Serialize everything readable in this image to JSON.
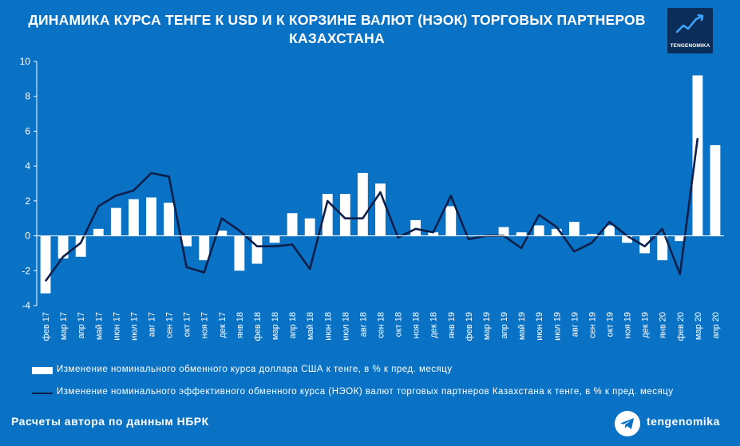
{
  "title": "ДИНАМИКА КУРСА ТЕНГЕ К USD И К КОРЗИНЕ ВАЛЮТ (НЭОК) ТОРГОВЫХ ПАРТНЕРОВ КАЗАХСТАНА",
  "logo": {
    "text": "TENGENOMIKA",
    "icon": "trend-chart-icon"
  },
  "footer": {
    "source": "Расчеты автора по данным НБРК",
    "handle": "tengenomika",
    "icon": "telegram-icon"
  },
  "colors": {
    "background": "#0a72c4",
    "bar": "#ffffff",
    "line": "#0d1f4a",
    "axis": "#ffffff",
    "logo_bg": "#0b2d5a"
  },
  "chart_data": {
    "type": "bar",
    "title": "ДИНАМИКА КУРСА ТЕНГЕ К USD И К КОРЗИНЕ ВАЛЮТ (НЭОК) ТОРГОВЫХ ПАРТНЕРОВ КАЗАХСТАНА",
    "xlabel": "",
    "ylabel": "",
    "ylim": [
      -4,
      10
    ],
    "yticks": [
      10,
      8,
      6,
      4,
      2,
      0,
      -2,
      -4
    ],
    "grid": false,
    "legend_position": "bottom",
    "categories": [
      "фев 17",
      "мар 17",
      "апр 17",
      "май 17",
      "июн 17",
      "июл 17",
      "авг 17",
      "сен 17",
      "окт 17",
      "ноя 17",
      "дек 17",
      "янв 18",
      "фев 18",
      "мар 18",
      "апр 18",
      "май 18",
      "июн 18",
      "июл 18",
      "авг 18",
      "сен 18",
      "окт 18",
      "ноя 18",
      "дек 18",
      "янв 19",
      "фев 19",
      "мар 19",
      "апр 19",
      "май 19",
      "июн 19",
      "июл 19",
      "авг 19",
      "сен 19",
      "окт 19",
      "ноя 19",
      "дек 19",
      "янв 20",
      "фев 20",
      "мар 20",
      "апр 20"
    ],
    "series": [
      {
        "name": "Изменение номинального обменного курса доллара США к тенге, в % к пред. месяцу",
        "kind": "bar",
        "values": [
          -3.3,
          -1.3,
          -1.2,
          0.4,
          1.6,
          2.1,
          2.2,
          1.9,
          -0.6,
          -1.4,
          0.3,
          -2.0,
          -1.6,
          -0.4,
          1.3,
          1.0,
          2.4,
          2.4,
          3.6,
          3.0,
          0.0,
          0.9,
          0.2,
          1.7,
          0.0,
          0.0,
          0.5,
          0.2,
          0.6,
          0.4,
          0.8,
          0.1,
          0.6,
          -0.4,
          -1.0,
          -1.4,
          -0.3,
          9.2,
          5.2
        ]
      },
      {
        "name": "Изменение номинального эффективного обменного курса (НЭОК) валют торговых партнеров Казахстана к тенге, в % к пред. месяцу",
        "kind": "line",
        "values": [
          -2.6,
          -1.2,
          -0.4,
          1.7,
          2.3,
          2.6,
          3.6,
          3.4,
          -1.8,
          -2.1,
          1.0,
          0.3,
          -0.6,
          -0.6,
          -0.5,
          -1.9,
          2.0,
          1.0,
          1.0,
          2.5,
          -0.1,
          0.4,
          0.2,
          2.3,
          -0.2,
          0.0,
          0.0,
          -0.7,
          1.2,
          0.5,
          -0.9,
          -0.4,
          0.8,
          0.0,
          -0.6,
          0.4,
          -2.2,
          5.6,
          null
        ]
      }
    ]
  }
}
